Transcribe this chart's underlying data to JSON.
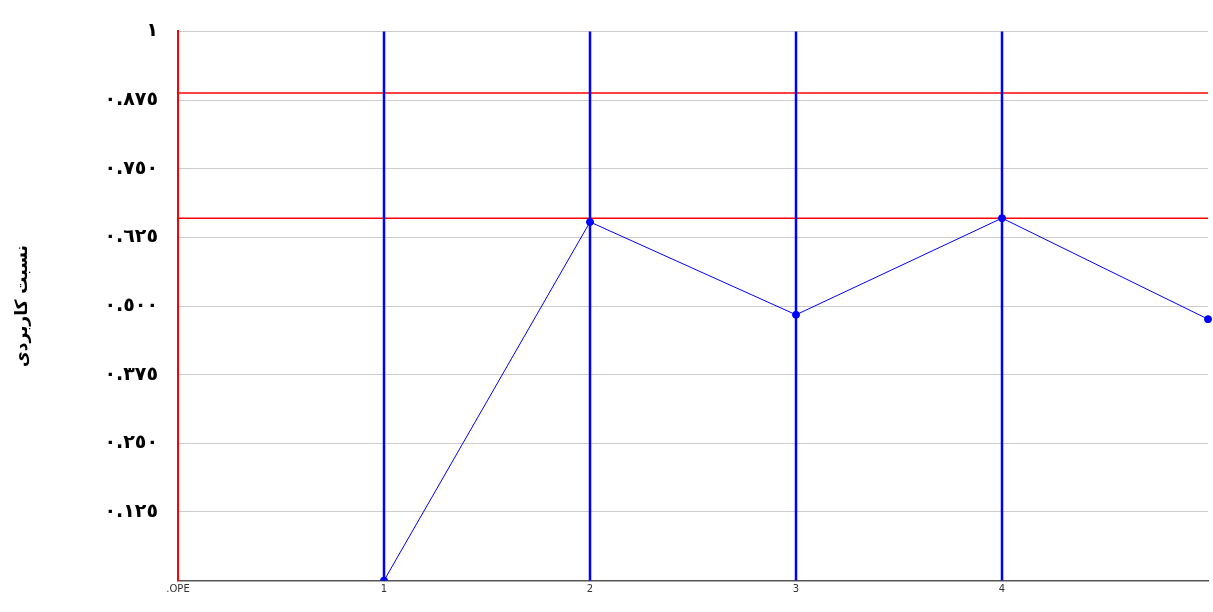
{
  "chart_data": {
    "type": "line",
    "ylabel": "نسبت کاربردی",
    "categories": [
      ".OPE",
      "1",
      "2",
      "3",
      "4",
      null
    ],
    "series": [
      {
        "color": "#0000ff",
        "values": [
          null,
          0,
          0.653,
          0.484,
          0.66,
          0.476
        ]
      }
    ],
    "ylim": [
      0,
      1
    ],
    "yticks": [
      {
        "value": 0.125,
        "label": "٠.١٢٥"
      },
      {
        "value": 0.25,
        "label": "٠.٢٥٠"
      },
      {
        "value": 0.375,
        "label": "٠.٣٧٥"
      },
      {
        "value": 0.5,
        "label": "٠.٥٠٠"
      },
      {
        "value": 0.625,
        "label": "٠.٦٢٥"
      },
      {
        "value": 0.75,
        "label": "٠.٧٥٠"
      },
      {
        "value": 0.875,
        "label": "٠.٨٧٥"
      },
      {
        "value": 1,
        "label": "١"
      }
    ],
    "ref_lines": [
      {
        "axis": "y",
        "value": 0.888,
        "color": "#ff0000"
      },
      {
        "axis": "y",
        "value": 0.66,
        "color": "#ff0000"
      },
      {
        "axis": "x",
        "value": "1",
        "color": "#0000ff"
      },
      {
        "axis": "x",
        "value": "2",
        "color": "#0000ff"
      },
      {
        "axis": "x",
        "value": "3",
        "color": "#0000ff"
      },
      {
        "axis": "x",
        "value": "4",
        "color": "#0000ff"
      }
    ],
    "grid": "y",
    "legend": false,
    "marker": "circle",
    "line_style": "solid"
  }
}
